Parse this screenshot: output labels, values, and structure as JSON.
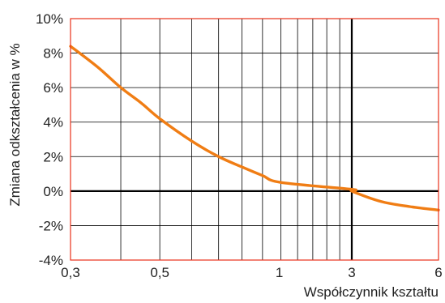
{
  "chart_data": {
    "type": "line",
    "title": "",
    "xlabel": "Współczynnik kształtu",
    "ylabel": "Zmiana odkształcenia w %",
    "x_scale": "log",
    "xlim": [
      0.3,
      6
    ],
    "ylim": [
      -4,
      10
    ],
    "grid": true,
    "x_ticks": [
      {
        "value": 0.3,
        "label": "0,3"
      },
      {
        "value": 0.5,
        "label": "0,5"
      },
      {
        "value": 1,
        "label": "1"
      },
      {
        "value": 3,
        "label": "3"
      },
      {
        "value": 6,
        "label": "6"
      }
    ],
    "x_gridlines": [
      0.3,
      0.4,
      0.5,
      0.6,
      0.7,
      0.8,
      0.9,
      1,
      1.1,
      1.2,
      1.3,
      1.4,
      1.5,
      3,
      6
    ],
    "y_ticks": [
      {
        "value": 10,
        "label": "10%"
      },
      {
        "value": 8,
        "label": "8%"
      },
      {
        "value": 6,
        "label": "6%"
      },
      {
        "value": 4,
        "label": "4%"
      },
      {
        "value": 2,
        "label": "2%"
      },
      {
        "value": 0,
        "label": "0%"
      },
      {
        "value": -2,
        "label": "-2%"
      },
      {
        "value": -4,
        "label": "-4%"
      }
    ],
    "reference_lines": {
      "x": 3,
      "y": 0
    },
    "series": [
      {
        "values": [
          {
            "x": 0.3,
            "y": 8.4
          },
          {
            "x": 0.35,
            "y": 7.2
          },
          {
            "x": 0.4,
            "y": 6.0
          },
          {
            "x": 0.45,
            "y": 5.1
          },
          {
            "x": 0.5,
            "y": 4.2
          },
          {
            "x": 0.6,
            "y": 2.9
          },
          {
            "x": 0.7,
            "y": 2.0
          },
          {
            "x": 0.8,
            "y": 1.4
          },
          {
            "x": 0.9,
            "y": 0.9
          },
          {
            "x": 1,
            "y": 0.5
          },
          {
            "x": 1.5,
            "y": 0.1
          },
          {
            "x": 3,
            "y": 0.0
          },
          {
            "x": 4,
            "y": -0.6
          },
          {
            "x": 5,
            "y": -0.9
          },
          {
            "x": 6,
            "y": -1.1
          }
        ]
      }
    ],
    "colors": {
      "line": "#f07d14",
      "frame": "#e8311a",
      "grid": "#000000"
    }
  }
}
